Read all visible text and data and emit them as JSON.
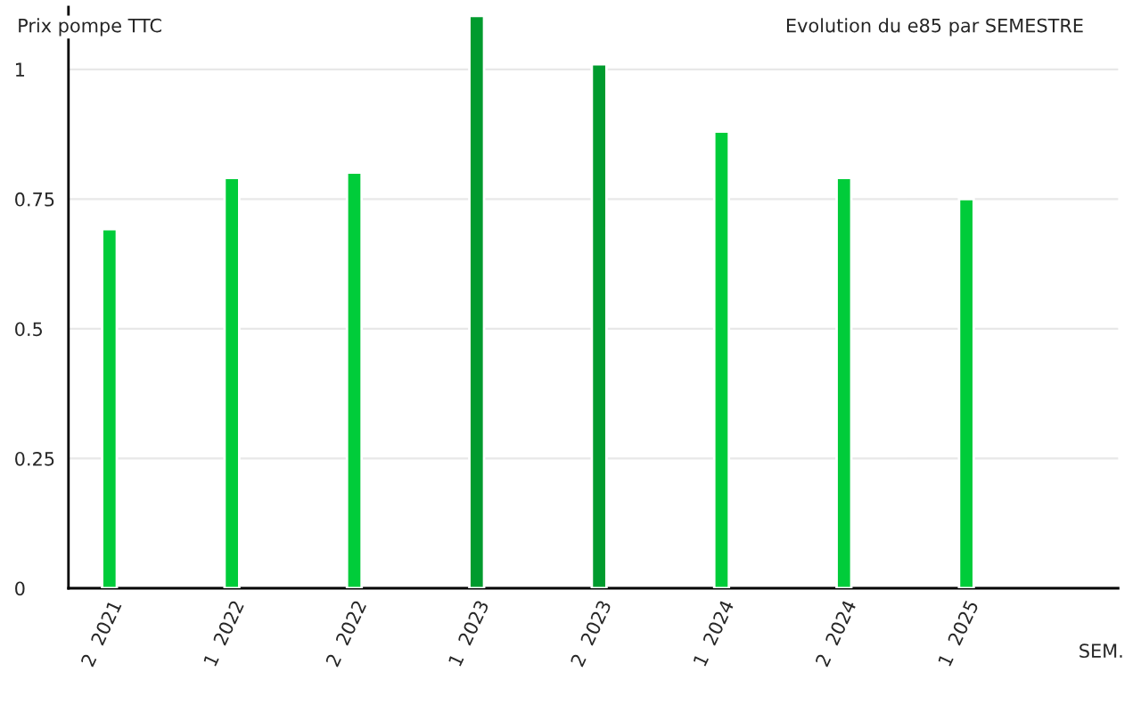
{
  "chart_data": {
    "type": "bar",
    "title": "Evolution du e85 par SEMESTRE",
    "ylabel": "Prix pompe TTC",
    "xlabel": "SEM.",
    "categories": [
      "2  2021",
      "1  2022",
      "2  2022",
      "1  2023",
      "2  2023",
      "1  2024",
      "2  2024",
      "1  2025"
    ],
    "values": [
      0.692,
      0.791,
      0.801,
      1.103,
      1.01,
      0.88,
      0.791,
      0.75
    ],
    "colors": [
      "#00cc3a",
      "#00cc3a",
      "#00cc3a",
      "#009b2e",
      "#009b2e",
      "#00cc3a",
      "#00cc3a",
      "#00cc3a"
    ],
    "ylim": [
      0,
      1.12
    ],
    "yticks": [
      0,
      0.25,
      0.5,
      0.75,
      1
    ],
    "grid": "y",
    "legend": false
  }
}
